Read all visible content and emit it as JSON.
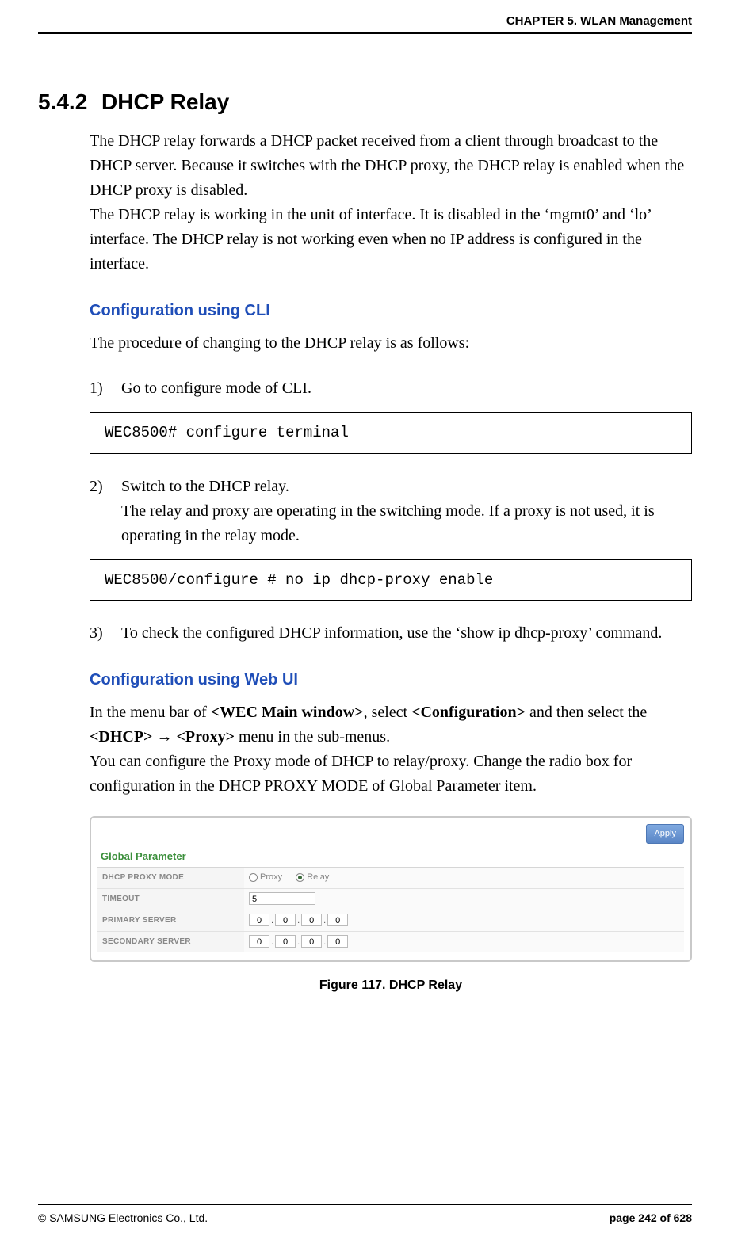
{
  "header": {
    "chapter": "CHAPTER 5. WLAN Management"
  },
  "section": {
    "number": "5.4.2",
    "title": "DHCP Relay"
  },
  "intro": {
    "p1": "The DHCP relay forwards a DHCP packet received from a client through broadcast to the DHCP server. Because it switches with the DHCP proxy, the DHCP relay is enabled when the DHCP proxy is disabled.",
    "p2": "The DHCP relay is working in the unit of interface. It is disabled in the ‘mgmt0’ and ‘lo’ interface. The DHCP relay is not working even when no IP address is configured in the interface."
  },
  "cli": {
    "heading": "Configuration using CLI",
    "intro": "The procedure of changing to the DHCP relay is as follows:",
    "steps": {
      "s1": {
        "num": "1)",
        "text": "Go to configure mode of CLI."
      },
      "s2": {
        "num": "2)",
        "line1": "Switch to the DHCP relay.",
        "line2": "The relay and proxy are operating in the switching mode. If a proxy is not used, it is operating in the relay mode."
      },
      "s3": {
        "num": "3)",
        "text": "To check the configured DHCP information, use the ‘show ip dhcp-proxy’ command."
      }
    },
    "code1": "WEC8500# configure terminal",
    "code2": "WEC8500/configure # no ip dhcp-proxy enable"
  },
  "webui": {
    "heading": "Configuration using Web UI",
    "p_pre": "In the menu bar of ",
    "b1": "<WEC Main window>",
    "p_mid1": ", select ",
    "b2": "<Configuration>",
    "p_mid2": " and then select the ",
    "b3": "<DHCP>",
    "arrow": " → ",
    "b4": "<Proxy>",
    "p_post": " menu in the sub-menus.",
    "p2": "You can configure the Proxy mode of DHCP to relay/proxy. Change the radio box for configuration in the DHCP PROXY MODE of Global Parameter item."
  },
  "figure": {
    "apply": "Apply",
    "group": "Global Parameter",
    "rows": {
      "mode": {
        "label": "DHCP PROXY MODE",
        "opt1": "Proxy",
        "opt2": "Relay",
        "selected": "Relay"
      },
      "timeout": {
        "label": "TIMEOUT",
        "value": "5"
      },
      "primary": {
        "label": "PRIMARY SERVER",
        "o1": "0",
        "o2": "0",
        "o3": "0",
        "o4": "0"
      },
      "secondary": {
        "label": "SECONDARY SERVER",
        "o1": "0",
        "o2": "0",
        "o3": "0",
        "o4": "0"
      }
    },
    "caption": "Figure 117. DHCP Relay"
  },
  "footer": {
    "left": "© SAMSUNG Electronics Co., Ltd.",
    "right": "page 242 of 628"
  },
  "colors": {
    "heading_blue": "#1f4eb8",
    "group_green": "#3b8f3b",
    "label_grey": "#888888",
    "border_grey": "#c9c9c9"
  }
}
